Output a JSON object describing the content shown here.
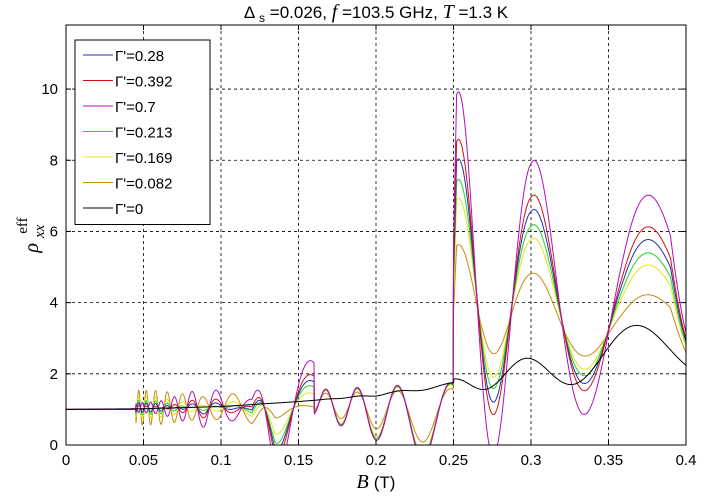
{
  "chart_data": {
    "type": "line",
    "title_parts": [
      "Δ",
      "s",
      "=0.026, ",
      "f",
      " =103.5 GHz, ",
      "T",
      " =1.3 K"
    ],
    "xlabel_parts": [
      "B",
      "(T)"
    ],
    "ylabel_parts": [
      "ρ",
      "xx",
      "eff"
    ],
    "xlim": [
      0,
      0.4
    ],
    "ylim": [
      0,
      11.8
    ],
    "xticks": [
      0,
      0.05,
      0.1,
      0.15,
      0.2,
      0.25,
      0.3,
      0.35,
      0.4
    ],
    "xtick_labels": [
      "0",
      "0.05",
      "0.1",
      "0.15",
      "0.2",
      "0.25",
      "0.3",
      "0.35",
      "0.4"
    ],
    "yticks": [
      0,
      2,
      4,
      6,
      8,
      10
    ],
    "ytick_labels": [
      "0",
      "2",
      "4",
      "6",
      "8",
      "10"
    ],
    "grid": true,
    "legend_position": "top-left",
    "series": [
      {
        "name": "Γ'=0.28",
        "color": "#1f2fb0",
        "amp_lo": 0.85,
        "amp_hi": 1.22,
        "base_hi": 1.0,
        "drop": 1.0
      },
      {
        "name": "Γ'=0.392",
        "color": "#d01010",
        "amp_lo": 0.93,
        "amp_hi": 1.38,
        "base_hi": 1.05,
        "drop": 1.0
      },
      {
        "name": "Γ'=0.7",
        "color": "#b010b8",
        "amp_lo": 1.12,
        "amp_hi": 1.82,
        "base_hi": 1.12,
        "drop": 1.0
      },
      {
        "name": "Γ'=0.213",
        "color": "#22d622",
        "amp_lo": 0.78,
        "amp_hi": 1.05,
        "base_hi": 0.95,
        "drop": 0.95
      },
      {
        "name": "Γ'=0.169",
        "color": "#e4e41a",
        "amp_lo": 0.68,
        "amp_hi": 0.9,
        "base_hi": 0.9,
        "drop": 0.9
      },
      {
        "name": "Γ'=0.082",
        "color": "#c88a10",
        "amp_lo": 0.5,
        "amp_hi": 0.55,
        "base_hi": 0.75,
        "drop": 0.7
      },
      {
        "name": "Γ'=0",
        "color": "#000000",
        "amp_lo": 0.0,
        "amp_hi": 0.0,
        "base_hi": 0.0,
        "drop": 0.0
      }
    ],
    "dark_curve_points": [
      [
        0.0,
        1.0
      ],
      [
        0.05,
        1.02
      ],
      [
        0.1,
        1.08
      ],
      [
        0.15,
        1.22
      ],
      [
        0.2,
        1.4
      ],
      [
        0.25,
        1.7
      ],
      [
        0.3,
        2.05
      ],
      [
        0.35,
        2.45
      ],
      [
        0.4,
        2.9
      ]
    ],
    "bright_envelope": [
      [
        0.04,
        1.0
      ],
      [
        0.06,
        1.05
      ],
      [
        0.09,
        1.4
      ],
      [
        0.12,
        1.1
      ],
      [
        0.135,
        2.6
      ],
      [
        0.15,
        2.2
      ],
      [
        0.2,
        1.4
      ],
      [
        0.248,
        1.5
      ],
      [
        0.252,
        6.8
      ],
      [
        0.27,
        7.2
      ],
      [
        0.3,
        5.9
      ],
      [
        0.33,
        5.2
      ],
      [
        0.36,
        4.6
      ],
      [
        0.39,
        4.4
      ],
      [
        0.4,
        2.5
      ]
    ]
  }
}
